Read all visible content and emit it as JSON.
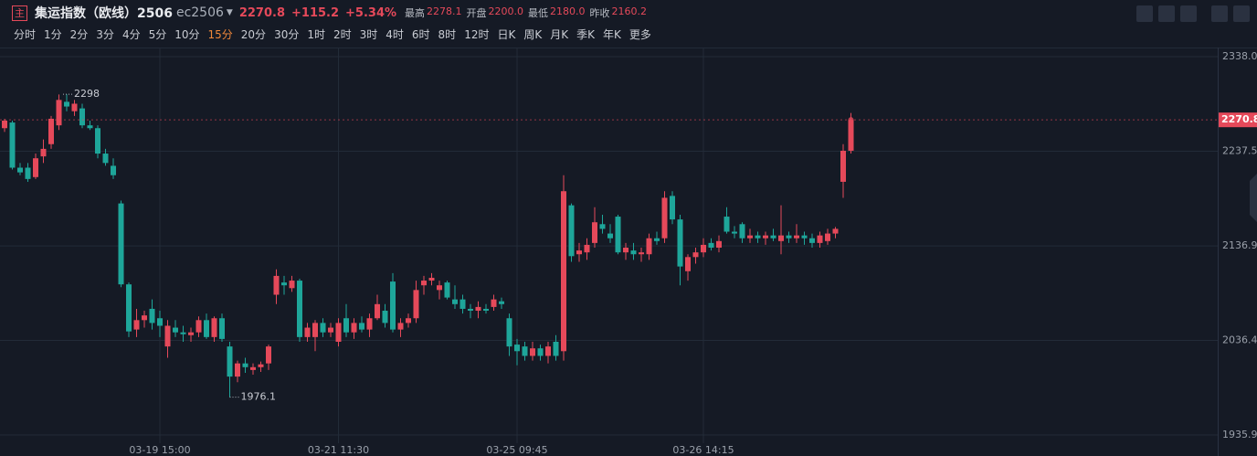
{
  "header": {
    "badge": "主",
    "title": "集运指数（欧线）2506",
    "code": "ec2506",
    "price": "2270.8",
    "change": "+115.2",
    "change_pct": "+5.34%",
    "stats": [
      {
        "label": "最高",
        "value": "2278.1"
      },
      {
        "label": "开盘",
        "value": "2200.0"
      },
      {
        "label": "最低",
        "value": "2180.0"
      },
      {
        "label": "昨收",
        "value": "2160.2"
      }
    ],
    "periods": [
      "分时",
      "1分",
      "2分",
      "3分",
      "4分",
      "5分",
      "10分",
      "15分",
      "20分",
      "30分",
      "1时",
      "2时",
      "3时",
      "4时",
      "6时",
      "8时",
      "12时",
      "日K",
      "周K",
      "月K",
      "季K",
      "年K",
      "更多"
    ],
    "selected_period": 7
  },
  "chart_data": {
    "type": "candlestick",
    "categories": [
      null,
      null,
      null,
      null,
      null,
      null,
      null,
      null,
      null,
      null,
      null,
      null,
      null,
      null,
      null,
      null,
      null,
      null,
      null,
      null,
      "03-19 15:00",
      null,
      null,
      null,
      null,
      null,
      null,
      null,
      null,
      null,
      null,
      null,
      null,
      null,
      null,
      null,
      null,
      null,
      null,
      null,
      null,
      null,
      null,
      "03-21 11:30",
      null,
      null,
      null,
      null,
      null,
      null,
      null,
      null,
      null,
      null,
      null,
      null,
      null,
      null,
      null,
      null,
      null,
      null,
      null,
      null,
      null,
      null,
      "03-25 09:45",
      null,
      null,
      null,
      null,
      null,
      null,
      null,
      null,
      null,
      null,
      null,
      null,
      null,
      null,
      null,
      null,
      null,
      null,
      null,
      null,
      null,
      null,
      null,
      "03-26 14:15",
      null,
      null,
      null,
      null,
      null,
      null,
      null,
      null,
      null,
      null,
      null,
      null,
      null,
      null,
      null,
      null,
      null,
      null,
      null
    ],
    "open": [
      2262,
      2268,
      2220,
      2220,
      2210,
      2232,
      2245,
      2265,
      2290,
      2280,
      2283,
      2265,
      2262,
      2235,
      2222,
      2182,
      2096,
      2048,
      2058,
      2070,
      2060,
      2030,
      2050,
      2045,
      2042,
      2045,
      2058,
      2040,
      2060,
      2030,
      1998,
      2012,
      2005,
      2008,
      2012,
      2085,
      2098,
      2092,
      2100,
      2040,
      2040,
      2055,
      2045,
      2035,
      2060,
      2045,
      2055,
      2048,
      2060,
      2068,
      2099,
      2048,
      2055,
      2060,
      2095,
      2100,
      2090,
      2098,
      2080,
      2080,
      2070,
      2068,
      2070,
      2072,
      2078,
      2060,
      2032,
      2030,
      2020,
      2028,
      2020,
      2035,
      2025,
      2180,
      2128,
      2130,
      2140,
      2160,
      2150,
      2168,
      2130,
      2132,
      2128,
      2128,
      2145,
      2145,
      2190,
      2165,
      2110,
      2125,
      2130,
      2140,
      2135,
      2168,
      2152,
      2160,
      2145,
      2148,
      2145,
      2148,
      2142,
      2148,
      2145,
      2148,
      2145,
      2140,
      2142,
      2150,
      2205,
      2238
    ],
    "high": [
      2272,
      2270,
      2225,
      2225,
      2235,
      2250,
      2275,
      2297.8,
      2298,
      2292,
      2288,
      2270,
      2265,
      2240,
      2230,
      2185,
      2098,
      2070,
      2068,
      2080,
      2068,
      2058,
      2058,
      2052,
      2050,
      2062,
      2065,
      2062,
      2065,
      2035,
      2015,
      2018,
      2012,
      2014,
      2032,
      2112,
      2105,
      2105,
      2102,
      2055,
      2058,
      2060,
      2055,
      2060,
      2075,
      2060,
      2062,
      2065,
      2085,
      2075,
      2108,
      2060,
      2065,
      2100,
      2105,
      2108,
      2100,
      2100,
      2095,
      2085,
      2075,
      2078,
      2075,
      2085,
      2082,
      2065,
      2038,
      2035,
      2035,
      2032,
      2035,
      2042,
      2212,
      2182,
      2140,
      2145,
      2178,
      2170,
      2160,
      2170,
      2140,
      2140,
      2135,
      2150,
      2152,
      2195,
      2195,
      2170,
      2128,
      2135,
      2145,
      2145,
      2148,
      2178,
      2158,
      2162,
      2155,
      2152,
      2152,
      2155,
      2180,
      2152,
      2160,
      2152,
      2150,
      2152,
      2155,
      2157,
      2245,
      2278.1
    ],
    "low": [
      2258,
      2218,
      2212,
      2205,
      2208,
      2225,
      2240,
      2260,
      2280,
      2275,
      2262,
      2260,
      2230,
      2222,
      2208,
      2093,
      2040,
      2040,
      2050,
      2048,
      2040,
      2018,
      2040,
      2035,
      2035,
      2040,
      2038,
      2035,
      2035,
      1976.1,
      1992,
      2002,
      2000,
      2003,
      2005,
      2075,
      2085,
      2088,
      2035,
      2035,
      2025,
      2040,
      2040,
      2030,
      2040,
      2038,
      2045,
      2040,
      2058,
      2050,
      2045,
      2040,
      2050,
      2055,
      2085,
      2095,
      2080,
      2080,
      2070,
      2065,
      2060,
      2060,
      2065,
      2068,
      2070,
      2020,
      2010,
      2015,
      2015,
      2015,
      2012,
      2015,
      2015,
      2120,
      2120,
      2122,
      2135,
      2150,
      2140,
      2128,
      2122,
      2122,
      2120,
      2122,
      2138,
      2140,
      2160,
      2095,
      2100,
      2118,
      2125,
      2132,
      2130,
      2150,
      2145,
      2140,
      2140,
      2140,
      2138,
      2142,
      2128,
      2140,
      2140,
      2138,
      2135,
      2135,
      2138,
      2145,
      2188,
      2235
    ],
    "close": [
      2270,
      2220,
      2215,
      2208,
      2230,
      2240,
      2272,
      2292,
      2285,
      2288,
      2265,
      2262,
      2235,
      2225,
      2212,
      2096,
      2046,
      2058,
      2063,
      2055,
      2052,
      2052,
      2045,
      2043,
      2045,
      2058,
      2040,
      2060,
      2038,
      1998,
      2012,
      2008,
      2008,
      2011,
      2030,
      2105,
      2095,
      2100,
      2040,
      2050,
      2055,
      2045,
      2050,
      2055,
      2045,
      2055,
      2048,
      2060,
      2075,
      2055,
      2048,
      2055,
      2060,
      2090,
      2100,
      2103,
      2095,
      2082,
      2075,
      2070,
      2068,
      2072,
      2068,
      2080,
      2075,
      2030,
      2025,
      2020,
      2028,
      2020,
      2030,
      2020,
      2195,
      2126,
      2132,
      2138,
      2162,
      2155,
      2145,
      2130,
      2135,
      2128,
      2130,
      2145,
      2142,
      2188,
      2165,
      2115,
      2125,
      2130,
      2138,
      2135,
      2142,
      2152,
      2150,
      2145,
      2148,
      2145,
      2148,
      2145,
      2148,
      2145,
      2148,
      2145,
      2140,
      2148,
      2150,
      2155,
      2238,
      2270.8
    ],
    "up_color": "#e5495a",
    "down_color": "#1ea69a",
    "ylim": [
      1927.2,
      2347.7
    ],
    "yticks": [
      {
        "value": 2338,
        "label": "2338.0"
      },
      2237.5,
      2136.9,
      2036.4,
      1935.9
    ],
    "grid": true
  }
}
